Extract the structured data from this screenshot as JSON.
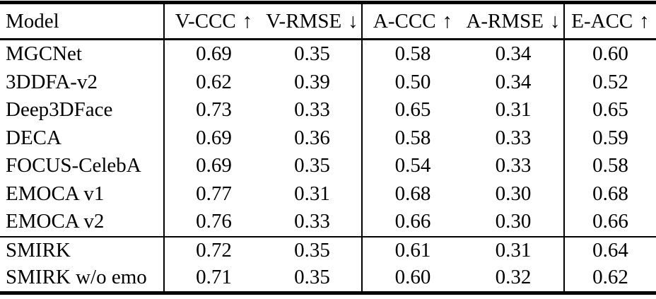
{
  "colors": {
    "text": "#000000",
    "background": "#ffffff",
    "rule": "#000000"
  },
  "table": {
    "columns": [
      {
        "id": "model",
        "label": "Model",
        "arrow": ""
      },
      {
        "id": "v_ccc",
        "label": "V-CCC",
        "arrow": "↑"
      },
      {
        "id": "v_rmse",
        "label": "V-RMSE",
        "arrow": "↓"
      },
      {
        "id": "a_ccc",
        "label": "A-CCC",
        "arrow": "↑"
      },
      {
        "id": "a_rmse",
        "label": "A-RMSE",
        "arrow": "↓"
      },
      {
        "id": "e_acc",
        "label": "E-ACC",
        "arrow": "↑"
      }
    ],
    "rows": [
      {
        "model": "MGCNet",
        "v_ccc": "0.69",
        "v_rmse": "0.35",
        "a_ccc": "0.58",
        "a_rmse": "0.34",
        "e_acc": "0.60"
      },
      {
        "model": "3DDFA-v2",
        "v_ccc": "0.62",
        "v_rmse": "0.39",
        "a_ccc": "0.50",
        "a_rmse": "0.34",
        "e_acc": "0.52"
      },
      {
        "model": "Deep3DFace",
        "v_ccc": "0.73",
        "v_rmse": "0.33",
        "a_ccc": "0.65",
        "a_rmse": "0.31",
        "e_acc": "0.65"
      },
      {
        "model": "DECA",
        "v_ccc": "0.69",
        "v_rmse": "0.36",
        "a_ccc": "0.58",
        "a_rmse": "0.33",
        "e_acc": "0.59"
      },
      {
        "model": "FOCUS-CelebA",
        "v_ccc": "0.69",
        "v_rmse": "0.35",
        "a_ccc": "0.54",
        "a_rmse": "0.33",
        "e_acc": "0.58"
      },
      {
        "model": "EMOCA v1",
        "v_ccc": "0.77",
        "v_rmse": "0.31",
        "a_ccc": "0.68",
        "a_rmse": "0.30",
        "e_acc": "0.68"
      },
      {
        "model": "EMOCA v2",
        "v_ccc": "0.76",
        "v_rmse": "0.33",
        "a_ccc": "0.66",
        "a_rmse": "0.30",
        "e_acc": "0.66"
      },
      {
        "model": "SMIRK",
        "v_ccc": "0.72",
        "v_rmse": "0.35",
        "a_ccc": "0.61",
        "a_rmse": "0.31",
        "e_acc": "0.64"
      },
      {
        "model": "SMIRK w/o emo",
        "v_ccc": "0.71",
        "v_rmse": "0.35",
        "a_ccc": "0.60",
        "a_rmse": "0.32",
        "e_acc": "0.62"
      }
    ]
  },
  "chart_data": {
    "type": "table",
    "columns": [
      "Model",
      "V-CCC ↑",
      "V-RMSE ↓",
      "A-CCC ↑",
      "A-RMSE ↓",
      "E-ACC ↑"
    ],
    "rows": [
      [
        "MGCNet",
        0.69,
        0.35,
        0.58,
        0.34,
        0.6
      ],
      [
        "3DDFA-v2",
        0.62,
        0.39,
        0.5,
        0.34,
        0.52
      ],
      [
        "Deep3DFace",
        0.73,
        0.33,
        0.65,
        0.31,
        0.65
      ],
      [
        "DECA",
        0.69,
        0.36,
        0.58,
        0.33,
        0.59
      ],
      [
        "FOCUS-CelebA",
        0.69,
        0.35,
        0.54,
        0.33,
        0.58
      ],
      [
        "EMOCA v1",
        0.77,
        0.31,
        0.68,
        0.3,
        0.68
      ],
      [
        "EMOCA v2",
        0.76,
        0.33,
        0.66,
        0.3,
        0.66
      ],
      [
        "SMIRK",
        0.72,
        0.35,
        0.61,
        0.31,
        0.64
      ],
      [
        "SMIRK w/o emo",
        0.71,
        0.35,
        0.6,
        0.32,
        0.62
      ]
    ],
    "layout": {
      "column_groups": [
        [
          "Model"
        ],
        [
          "V-CCC ↑",
          "V-RMSE ↓"
        ],
        [
          "A-CCC ↑",
          "A-RMSE ↓"
        ],
        [
          "E-ACC ↑"
        ]
      ],
      "row_sections": [
        [
          0,
          6
        ],
        [
          7,
          8
        ]
      ]
    }
  }
}
